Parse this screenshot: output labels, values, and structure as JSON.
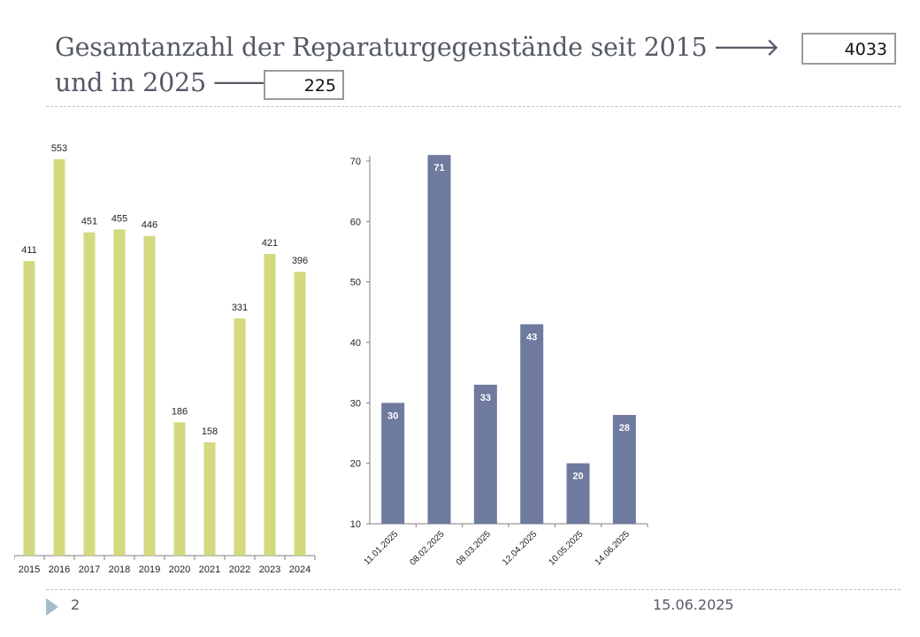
{
  "title": {
    "line1": "Gesamtanzahl der Reparaturgegenstände seit 2015",
    "line2": "und in 2025",
    "arrow": "🡒",
    "total_value": "4033",
    "year_value": "225"
  },
  "footer": {
    "page_number": "2",
    "date": "15.06.2025"
  },
  "colors": {
    "yearly_bars": "#d3d97e",
    "event_bars": "#6f7a9f",
    "axis": "#7f7f7f",
    "text": "#555a66"
  },
  "chart_data": [
    {
      "type": "bar",
      "title": "",
      "xlabel": "",
      "ylabel": "",
      "categories": [
        "2015",
        "2016",
        "2017",
        "2018",
        "2019",
        "2020",
        "2021",
        "2022",
        "2023",
        "2024"
      ],
      "values": [
        411,
        553,
        451,
        455,
        446,
        186,
        158,
        331,
        421,
        396
      ],
      "ylim": [
        0,
        553
      ],
      "y_axis_shown": false,
      "data_labels": "above",
      "grid": false,
      "legend": "none"
    },
    {
      "type": "bar",
      "title": "",
      "xlabel": "",
      "ylabel": "",
      "categories": [
        "11.01.2025",
        "08.02.2025",
        "08.03.2025",
        "12.04.2025",
        "10.05.2025",
        "14.06.2025"
      ],
      "values": [
        30,
        71,
        33,
        43,
        20,
        28
      ],
      "ylim": [
        10,
        71
      ],
      "yticks": [
        10,
        20,
        30,
        40,
        50,
        60,
        70
      ],
      "y_axis_shown": true,
      "data_labels": "inside-top",
      "x_label_rotation": -45,
      "grid": false,
      "legend": "none"
    }
  ]
}
